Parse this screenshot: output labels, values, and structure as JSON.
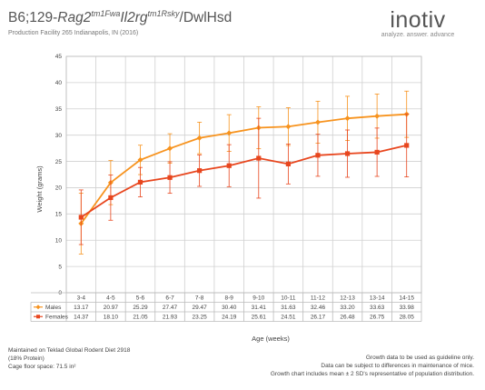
{
  "header": {
    "title_strain": "B6;129-",
    "title_gene1": "Rag2",
    "title_gene1_sup": "tm1Fwa",
    "title_gene2": "Il2rg",
    "title_gene2_sup": "tm1Rsky",
    "title_suffix": "/DwlHsd",
    "subtitle": "Production Facility 265 Indianapolis, IN (2016)"
  },
  "logo": {
    "wordmark": "inotiv",
    "tagline": "analyze. answer. advance"
  },
  "chart_data": {
    "type": "line",
    "xlabel": "Age (weeks)",
    "ylabel": "Weight (grams)",
    "ylim": [
      0,
      45
    ],
    "yticks": [
      0,
      5,
      10,
      15,
      20,
      25,
      30,
      35,
      40,
      45
    ],
    "grid": true,
    "categories": [
      "3-4",
      "4-5",
      "5-6",
      "6-7",
      "7-8",
      "8-9",
      "9-10",
      "10-11",
      "11-12",
      "12-13",
      "13-14",
      "14-15"
    ],
    "series": [
      {
        "name": "Males",
        "color": "#F7931E",
        "marker": "diamond",
        "values": [
          13.17,
          20.97,
          25.29,
          27.47,
          29.47,
          30.4,
          31.41,
          31.63,
          32.46,
          33.2,
          33.63,
          33.98
        ],
        "labels": [
          "13.17",
          "20.97",
          "25.29",
          "27.47",
          "29.47",
          "30.40",
          "31.41",
          "31.63",
          "32.46",
          "33.20",
          "33.63",
          "33.98"
        ],
        "error": [
          5.8,
          4.2,
          2.8,
          2.8,
          3.0,
          3.5,
          4.0,
          3.6,
          4.0,
          4.2,
          4.2,
          4.4
        ]
      },
      {
        "name": "Females",
        "color": "#E8461E",
        "marker": "square",
        "values": [
          14.37,
          18.1,
          21.05,
          21.93,
          23.25,
          24.19,
          25.61,
          24.51,
          26.17,
          26.48,
          26.75,
          28.05
        ],
        "labels": [
          "14.37",
          "18.10",
          "21.05",
          "21.93",
          "23.25",
          "24.19",
          "25.61",
          "24.51",
          "26.17",
          "26.48",
          "26.75",
          "28.05"
        ],
        "error": [
          5.2,
          4.3,
          2.8,
          3.0,
          3.0,
          4.0,
          7.6,
          3.8,
          4.0,
          4.5,
          4.6,
          6.0
        ]
      }
    ]
  },
  "notes": {
    "diet": "Maintained on Teklad Global Rodent Diet 2918",
    "protein": "(18% Protein)",
    "floor_space": "Cage floor space: 71.5 in²",
    "disclaimer_1": "Growth data to be used as guideline only.",
    "disclaimer_2": "Data can be subject to differences in maintenance of mice.",
    "disclaimer_3": "Growth chart includes mean ± 2 SD's representative of population distribution."
  }
}
